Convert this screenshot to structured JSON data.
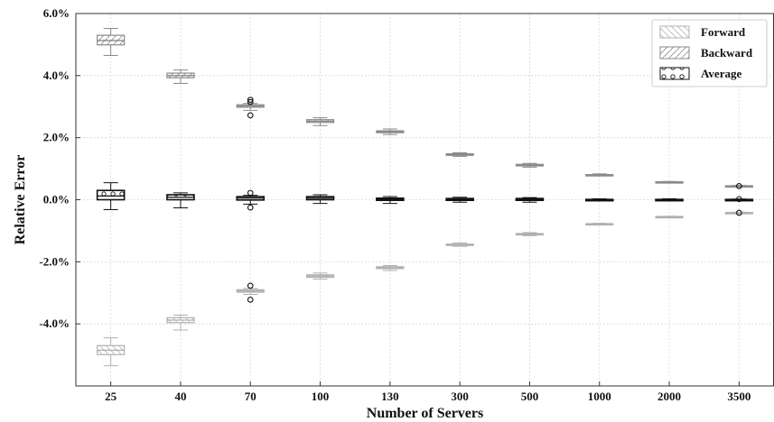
{
  "chart_data": {
    "type": "boxplot",
    "xlabel": "Number of Servers",
    "ylabel": "Relative Error",
    "categories": [
      "25",
      "40",
      "70",
      "100",
      "130",
      "300",
      "500",
      "1000",
      "2000",
      "3500"
    ],
    "ylim": [
      -6.0,
      6.0
    ],
    "yticks": [
      {
        "value": 6.0,
        "label": "6.0%"
      },
      {
        "value": 4.0,
        "label": "4.0%"
      },
      {
        "value": 2.0,
        "label": "2.0%"
      },
      {
        "value": 0.0,
        "label": "0.0%"
      },
      {
        "value": -2.0,
        "label": "-2.0%"
      },
      {
        "value": -4.0,
        "label": "-4.0%"
      }
    ],
    "grid": true,
    "legend": {
      "position": "top-right"
    },
    "series": [
      {
        "name": "Forward",
        "color": "#b0b0b0",
        "hatch": "\\",
        "boxes": [
          {
            "whislo": -5.35,
            "q1": -4.99,
            "med": -4.85,
            "q3": -4.7,
            "whishi": -4.45,
            "fliers": []
          },
          {
            "whislo": -4.2,
            "q1": -3.96,
            "med": -3.88,
            "q3": -3.8,
            "whishi": -3.72,
            "fliers": []
          },
          {
            "whislo": -3.05,
            "q1": -2.98,
            "med": -2.94,
            "q3": -2.9,
            "whishi": -2.86,
            "fliers": [
              -2.77,
              -3.22
            ]
          },
          {
            "whislo": -2.56,
            "q1": -2.5,
            "med": -2.46,
            "q3": -2.42,
            "whishi": -2.36,
            "fliers": []
          },
          {
            "whislo": -2.28,
            "q1": -2.22,
            "med": -2.19,
            "q3": -2.16,
            "whishi": -2.12,
            "fliers": []
          },
          {
            "whislo": -1.5,
            "q1": -1.47,
            "med": -1.45,
            "q3": -1.43,
            "whishi": -1.39,
            "fliers": []
          },
          {
            "whislo": -1.16,
            "q1": -1.13,
            "med": -1.11,
            "q3": -1.09,
            "whishi": -1.06,
            "fliers": []
          },
          {
            "whislo": -0.8,
            "q1": -0.79,
            "med": -0.78,
            "q3": -0.77,
            "whishi": -0.76,
            "fliers": []
          },
          {
            "whislo": -0.57,
            "q1": -0.56,
            "med": -0.55,
            "q3": -0.54,
            "whishi": -0.53,
            "fliers": []
          },
          {
            "whislo": -0.44,
            "q1": -0.43,
            "med": -0.42,
            "q3": -0.41,
            "whishi": -0.4,
            "fliers": []
          }
        ]
      },
      {
        "name": "Backward",
        "color": "#8a8a8a",
        "hatch": "/",
        "boxes": [
          {
            "whislo": 4.65,
            "q1": 4.99,
            "med": 5.13,
            "q3": 5.3,
            "whishi": 5.52,
            "fliers": []
          },
          {
            "whislo": 3.75,
            "q1": 3.93,
            "med": 4.0,
            "q3": 4.08,
            "whishi": 4.18,
            "fliers": []
          },
          {
            "whislo": 2.88,
            "q1": 2.98,
            "med": 3.02,
            "q3": 3.06,
            "whishi": 3.1,
            "fliers": [
              3.22,
              3.15,
              2.72
            ]
          },
          {
            "whislo": 2.39,
            "q1": 2.49,
            "med": 2.53,
            "q3": 2.58,
            "whishi": 2.64,
            "fliers": []
          },
          {
            "whislo": 2.1,
            "q1": 2.16,
            "med": 2.19,
            "q3": 2.22,
            "whishi": 2.28,
            "fliers": []
          },
          {
            "whislo": 1.4,
            "q1": 1.43,
            "med": 1.45,
            "q3": 1.48,
            "whishi": 1.51,
            "fliers": []
          },
          {
            "whislo": 1.05,
            "q1": 1.09,
            "med": 1.11,
            "q3": 1.14,
            "whishi": 1.17,
            "fliers": []
          },
          {
            "whislo": 0.77,
            "q1": 0.79,
            "med": 0.8,
            "q3": 0.81,
            "whishi": 0.83,
            "fliers": []
          },
          {
            "whislo": 0.55,
            "q1": 0.56,
            "med": 0.57,
            "q3": 0.58,
            "whishi": 0.59,
            "fliers": []
          },
          {
            "whislo": 0.42,
            "q1": 0.43,
            "med": 0.44,
            "q3": 0.45,
            "whishi": 0.46,
            "fliers": []
          }
        ]
      },
      {
        "name": "Average",
        "color": "#111111",
        "hatch": "o",
        "boxes": [
          {
            "whislo": -0.32,
            "q1": 0.0,
            "med": 0.12,
            "q3": 0.3,
            "whishi": 0.55,
            "fliers": []
          },
          {
            "whislo": -0.26,
            "q1": 0.0,
            "med": 0.08,
            "q3": 0.16,
            "whishi": 0.22,
            "fliers": []
          },
          {
            "whislo": -0.14,
            "q1": -0.01,
            "med": 0.05,
            "q3": 0.1,
            "whishi": 0.14,
            "fliers": [
              0.22,
              -0.25
            ]
          },
          {
            "whislo": -0.12,
            "q1": 0.0,
            "med": 0.05,
            "q3": 0.1,
            "whishi": 0.16,
            "fliers": []
          },
          {
            "whislo": -0.12,
            "q1": -0.02,
            "med": 0.02,
            "q3": 0.05,
            "whishi": 0.1,
            "fliers": []
          },
          {
            "whislo": -0.08,
            "q1": -0.02,
            "med": 0.01,
            "q3": 0.04,
            "whishi": 0.08,
            "fliers": []
          },
          {
            "whislo": -0.08,
            "q1": -0.02,
            "med": 0.01,
            "q3": 0.04,
            "whishi": 0.07,
            "fliers": []
          },
          {
            "whislo": -0.03,
            "q1": -0.01,
            "med": 0.0,
            "q3": 0.01,
            "whishi": 0.03,
            "fliers": []
          },
          {
            "whislo": -0.03,
            "q1": -0.01,
            "med": 0.0,
            "q3": 0.01,
            "whishi": 0.03,
            "fliers": []
          },
          {
            "whislo": -0.02,
            "q1": -0.01,
            "med": 0.0,
            "q3": 0.01,
            "whishi": 0.02,
            "fliers": [
              0.44,
              -0.42,
              0.02
            ]
          }
        ]
      }
    ]
  }
}
